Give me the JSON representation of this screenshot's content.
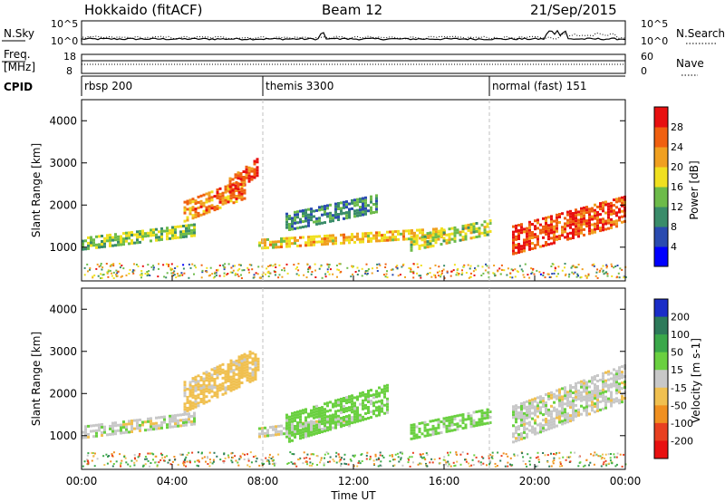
{
  "header": {
    "station": "Hokkaido (fitACF)",
    "beam": "Beam 12",
    "date": "21/Sep/2015"
  },
  "top_panel": {
    "left_label": "N.Sky",
    "left_ticks": [
      "10^5",
      "10^0"
    ],
    "right_ticks": [
      "10^5",
      "10^0"
    ],
    "right_label": "N.Search"
  },
  "freq_panel": {
    "label_line1": "Freq.",
    "label_line2": "[MHz]",
    "left_ticks": [
      "18",
      "8"
    ],
    "right_ticks": [
      "60",
      "0"
    ],
    "right_label": "Nave"
  },
  "cpid": {
    "label": "CPID",
    "segments": [
      {
        "name": "rbsp 200",
        "start_hour": 0
      },
      {
        "name": "themis 3300",
        "start_hour": 8
      },
      {
        "name": "normal (fast) 151",
        "start_hour": 18
      }
    ]
  },
  "chart_data": [
    {
      "type": "heatmap",
      "quantity": "Power",
      "ylabel": "Slant Range [km]",
      "xlim_hours": [
        0,
        24
      ],
      "ylim_km": [
        200,
        4500
      ],
      "yticks": [
        1000,
        2000,
        3000,
        4000
      ],
      "colorbar": {
        "label": "Power [dB]",
        "ticks": [
          "4",
          "8",
          "12",
          "16",
          "20",
          "24",
          "28"
        ],
        "colors": [
          "#0000ff",
          "#2a4bb0",
          "#3a8c6a",
          "#6dbb4a",
          "#f0e020",
          "#f0a020",
          "#f06010",
          "#e81010"
        ]
      },
      "echo_regions": [
        {
          "start_hour": 0.0,
          "end_hour": 5.0,
          "range_km": [
            1000,
            1600
          ],
          "power_db": 14
        },
        {
          "start_hour": 4.5,
          "end_hour": 7.2,
          "range_km": [
            1700,
            2700
          ],
          "power_db": 24
        },
        {
          "start_hour": 6.5,
          "end_hour": 7.8,
          "range_km": [
            2300,
            3200
          ],
          "power_db": 28
        },
        {
          "start_hour": 7.8,
          "end_hour": 16.0,
          "range_km": [
            1000,
            1500
          ],
          "power_db": 20
        },
        {
          "start_hour": 9.0,
          "end_hour": 13.0,
          "range_km": [
            1500,
            2300
          ],
          "power_db": 10
        },
        {
          "start_hour": 14.5,
          "end_hour": 18.0,
          "range_km": [
            1000,
            1700
          ],
          "power_db": 16
        },
        {
          "start_hour": 19.0,
          "end_hour": 24.0,
          "range_km": [
            1000,
            2300
          ],
          "power_db": 27
        }
      ]
    },
    {
      "type": "heatmap",
      "quantity": "Velocity",
      "ylabel": "Slant Range [km]",
      "xlabel": "Time UT",
      "xlim_hours": [
        0,
        24
      ],
      "ylim_km": [
        200,
        4500
      ],
      "yticks": [
        1000,
        2000,
        3000,
        4000
      ],
      "xticks": [
        "00:00",
        "04:00",
        "08:00",
        "12:00",
        "16:00",
        "20:00",
        "00:00"
      ],
      "colorbar": {
        "label": "Velocity [m s-1]",
        "ticks": [
          "200",
          "100",
          "50",
          "15",
          "-15",
          "-50",
          "-100",
          "-200"
        ],
        "colors": [
          "#1a2dc8",
          "#2d7a5a",
          "#3aa84a",
          "#6ad040",
          "#c8c8c8",
          "#f0c050",
          "#f09020",
          "#e84020",
          "#e81010"
        ]
      },
      "echo_regions": [
        {
          "start_hour": 0.0,
          "end_hour": 5.0,
          "range_km": [
            1000,
            1600
          ],
          "velocity": 0
        },
        {
          "start_hour": 4.5,
          "end_hour": 7.8,
          "range_km": [
            1700,
            3200
          ],
          "velocity": -30
        },
        {
          "start_hour": 7.8,
          "end_hour": 12.0,
          "range_km": [
            1000,
            1500
          ],
          "velocity": 0
        },
        {
          "start_hour": 9.0,
          "end_hour": 13.5,
          "range_km": [
            1000,
            2300
          ],
          "velocity": 30
        },
        {
          "start_hour": 14.5,
          "end_hour": 18.0,
          "range_km": [
            1000,
            1700
          ],
          "velocity": 30
        },
        {
          "start_hour": 19.0,
          "end_hour": 24.0,
          "range_km": [
            1000,
            2800
          ],
          "velocity": 0
        }
      ]
    }
  ]
}
